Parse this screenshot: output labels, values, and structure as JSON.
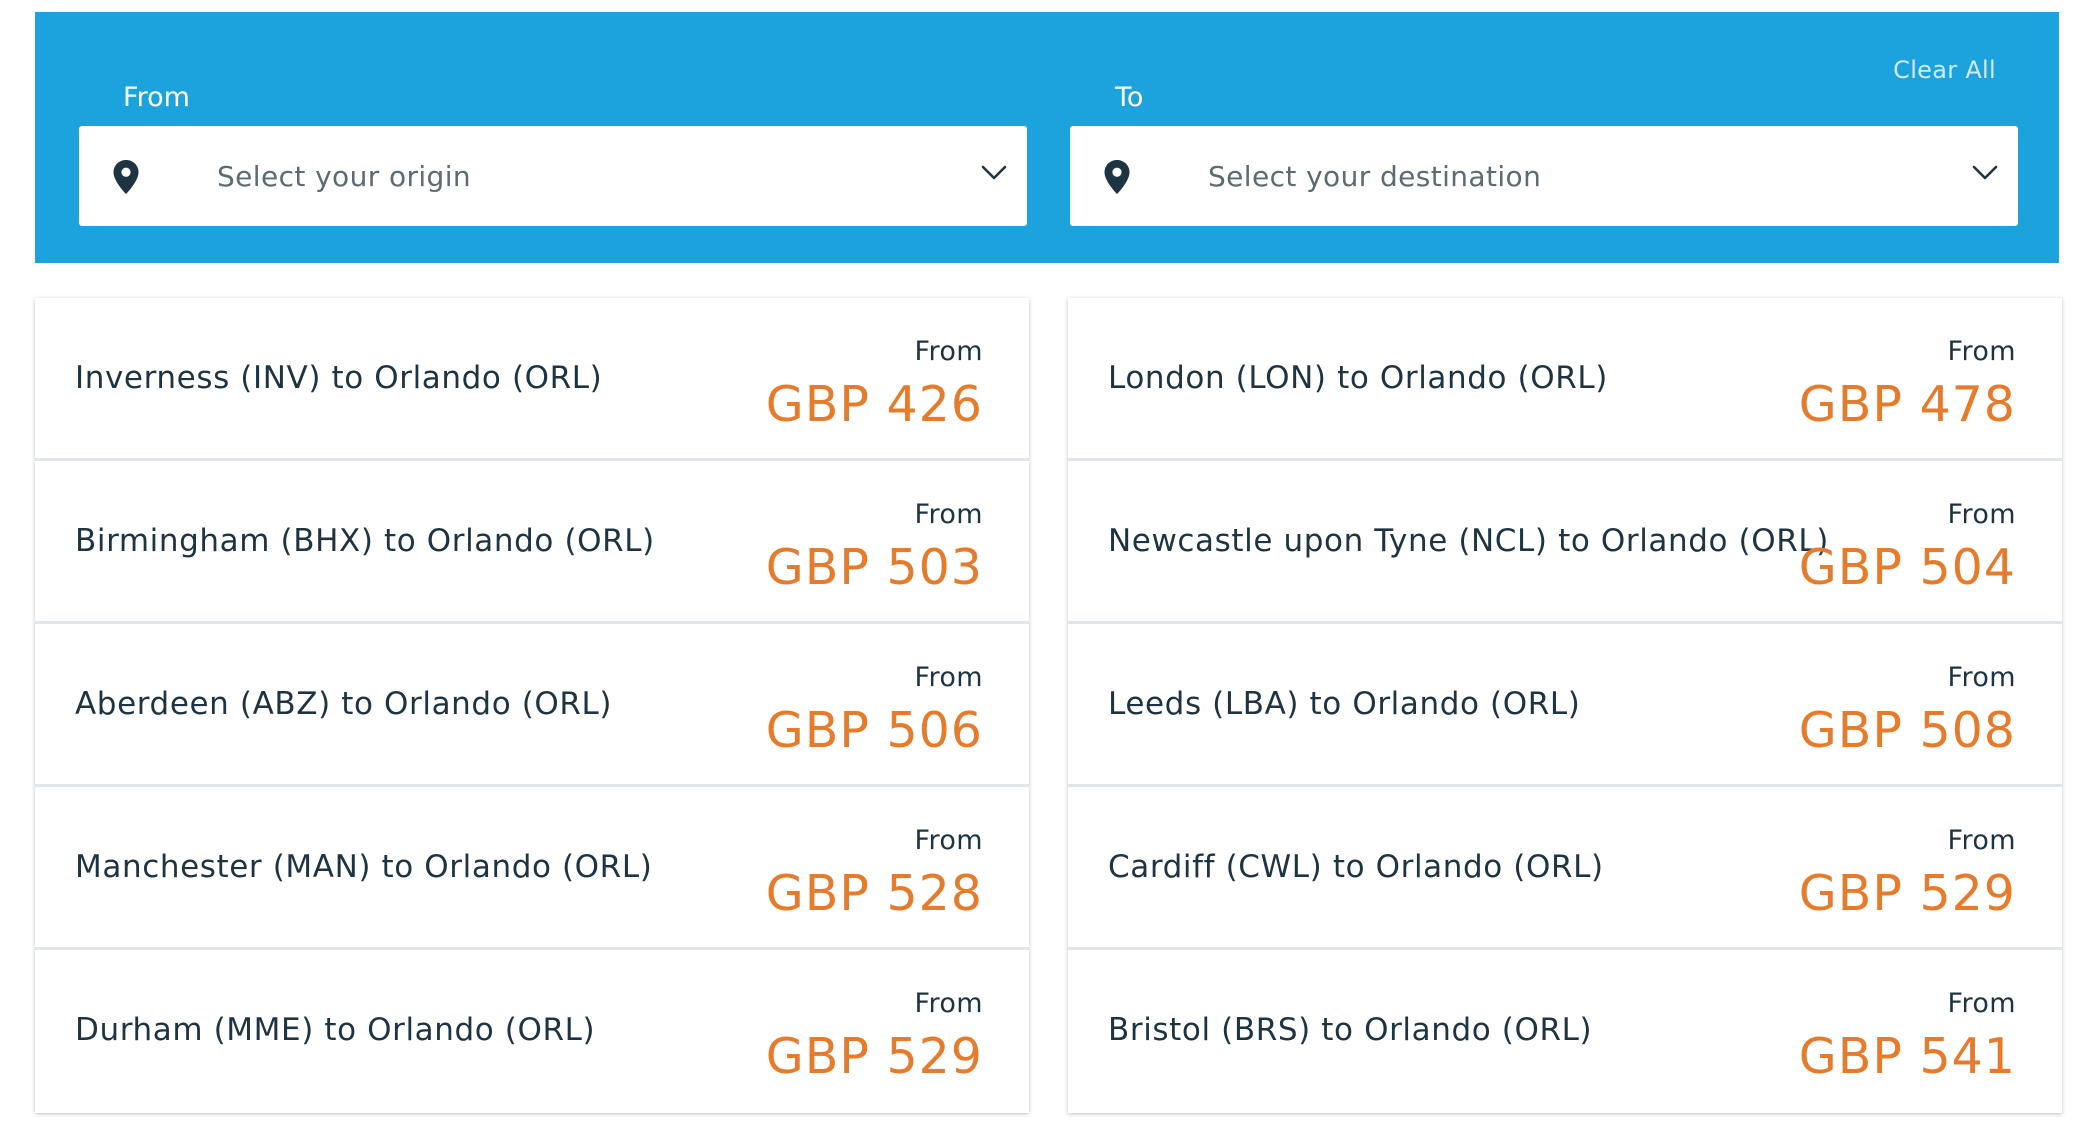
{
  "search": {
    "clear_all_label": "Clear All",
    "from_label": "From",
    "to_label": "To",
    "origin_placeholder": "Select your origin",
    "destination_placeholder": "Select your destination",
    "icons": {
      "pin": "map-pin-icon",
      "dropdown": "chevron-down-icon"
    }
  },
  "colors": {
    "panel_blue": "#1ca3dd",
    "price_orange": "#e67c2b",
    "text_dark": "#1f3442"
  },
  "routes": {
    "left": [
      {
        "route": "Inverness (INV) to Orlando (ORL)",
        "from_label": "From",
        "price": "GBP 426"
      },
      {
        "route": "Birmingham (BHX) to Orlando (ORL)",
        "from_label": "From",
        "price": "GBP 503"
      },
      {
        "route": "Aberdeen (ABZ) to Orlando (ORL)",
        "from_label": "From",
        "price": "GBP 506"
      },
      {
        "route": "Manchester (MAN) to Orlando (ORL)",
        "from_label": "From",
        "price": "GBP 528"
      },
      {
        "route": "Durham (MME) to Orlando (ORL)",
        "from_label": "From",
        "price": "GBP 529"
      }
    ],
    "right": [
      {
        "route": "London (LON) to Orlando (ORL)",
        "from_label": "From",
        "price": "GBP 478"
      },
      {
        "route": "Newcastle upon Tyne (NCL) to Orlando (ORL)",
        "from_label": "From",
        "price": "GBP 504"
      },
      {
        "route": "Leeds (LBA) to Orlando (ORL)",
        "from_label": "From",
        "price": "GBP 508"
      },
      {
        "route": "Cardiff (CWL) to Orlando (ORL)",
        "from_label": "From",
        "price": "GBP 529"
      },
      {
        "route": "Bristol (BRS) to Orlando (ORL)",
        "from_label": "From",
        "price": "GBP 541"
      }
    ]
  }
}
